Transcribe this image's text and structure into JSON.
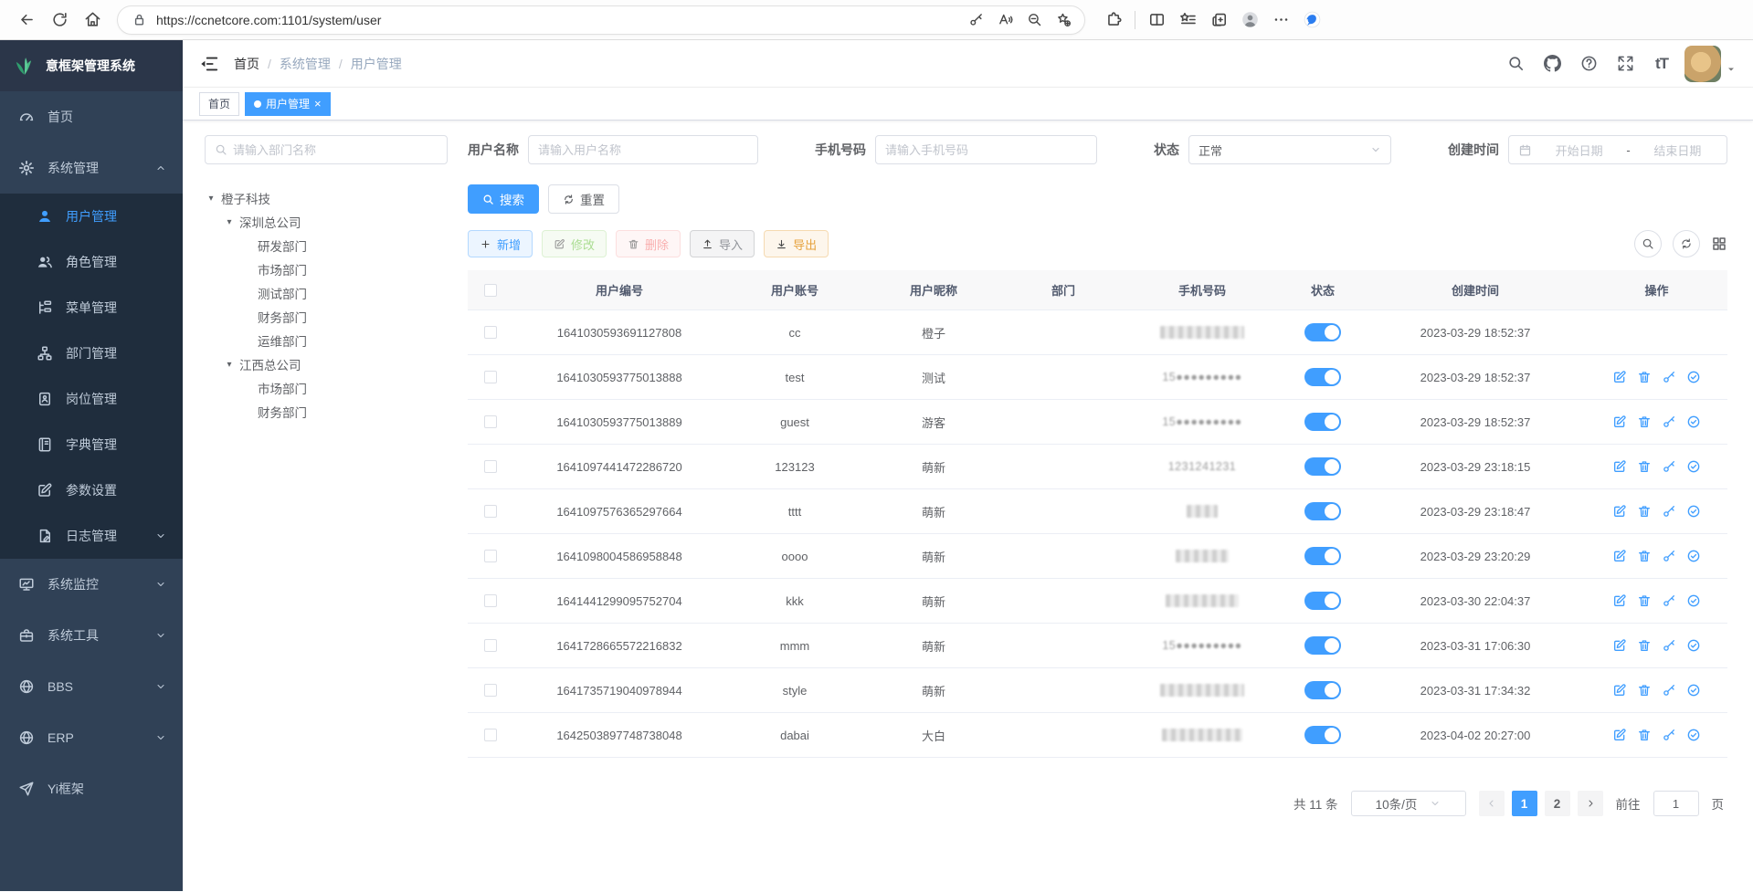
{
  "app": {
    "title": "意框架管理系统"
  },
  "colors": {
    "primary": "#409eff",
    "sidebar_bg": "#304156",
    "submenu_bg": "#1f2d3d",
    "logo_green": "#43b37c"
  },
  "browser": {
    "url": "https://ccnetcore.com:1101/system/user",
    "nav_icons": [
      {
        "name": "back"
      },
      {
        "name": "reload"
      },
      {
        "name": "home"
      }
    ],
    "address_icons_left": [
      {
        "name": "lock"
      }
    ],
    "address_icons_right": [
      {
        "name": "key"
      },
      {
        "name": "read-aloud"
      },
      {
        "name": "zoom-out"
      },
      {
        "name": "star-plus"
      }
    ],
    "toolbar_icons": [
      {
        "name": "extensions"
      },
      {
        "name": "divider"
      },
      {
        "name": "split-screen"
      },
      {
        "name": "favorites-bar"
      },
      {
        "name": "collections"
      },
      {
        "name": "profile"
      },
      {
        "name": "more"
      },
      {
        "name": "copilot"
      }
    ]
  },
  "sidebar": {
    "items": [
      {
        "label": "首页",
        "icon": "dashboard"
      },
      {
        "label": "系统管理",
        "icon": "gear",
        "expanded": true,
        "chevron": "up",
        "children": [
          {
            "label": "用户管理",
            "icon": "user",
            "active": true
          },
          {
            "label": "角色管理",
            "icon": "users"
          },
          {
            "label": "菜单管理",
            "icon": "menu-tree"
          },
          {
            "label": "部门管理",
            "icon": "org-tree"
          },
          {
            "label": "岗位管理",
            "icon": "post"
          },
          {
            "label": "字典管理",
            "icon": "dict"
          },
          {
            "label": "参数设置",
            "icon": "edit"
          },
          {
            "label": "日志管理",
            "icon": "log",
            "chevron": "down"
          }
        ]
      },
      {
        "label": "系统监控",
        "icon": "monitor",
        "chevron": "down"
      },
      {
        "label": "系统工具",
        "icon": "toolbox",
        "chevron": "down"
      },
      {
        "label": "BBS",
        "icon": "globe",
        "chevron": "down"
      },
      {
        "label": "ERP",
        "icon": "globe",
        "chevron": "down"
      },
      {
        "label": "Yi框架",
        "icon": "paper-plane"
      }
    ]
  },
  "navbar": {
    "breadcrumb": [
      {
        "label": "首页"
      },
      {
        "label": "系统管理"
      },
      {
        "label": "用户管理"
      }
    ],
    "separator": "/",
    "right_icons": [
      {
        "name": "search"
      },
      {
        "name": "github"
      },
      {
        "name": "question"
      },
      {
        "name": "fullscreen"
      },
      {
        "name": "font-size"
      }
    ]
  },
  "tags_view": [
    {
      "label": "首页",
      "active": false,
      "closable": false
    },
    {
      "label": "用户管理",
      "active": true,
      "closable": true
    }
  ],
  "dept_panel": {
    "search_placeholder": "请输入部门名称",
    "tree": [
      {
        "label": "橙子科技",
        "level": 0,
        "expandable": true
      },
      {
        "label": "深圳总公司",
        "level": 1,
        "expandable": true
      },
      {
        "label": "研发部门",
        "level": 2,
        "expandable": false
      },
      {
        "label": "市场部门",
        "level": 2,
        "expandable": false
      },
      {
        "label": "测试部门",
        "level": 2,
        "expandable": false
      },
      {
        "label": "财务部门",
        "level": 2,
        "expandable": false
      },
      {
        "label": "运维部门",
        "level": 2,
        "expandable": false
      },
      {
        "label": "江西总公司",
        "level": 1,
        "expandable": true
      },
      {
        "label": "市场部门",
        "level": 2,
        "expandable": false
      },
      {
        "label": "财务部门",
        "level": 2,
        "expandable": false
      }
    ]
  },
  "filters": {
    "username": {
      "label": "用户名称",
      "placeholder": "请输入用户名称"
    },
    "phone": {
      "label": "手机号码",
      "placeholder": "请输入手机号码"
    },
    "status": {
      "label": "状态",
      "value": "正常"
    },
    "create_time": {
      "label": "创建时间",
      "start": "开始日期",
      "separator": "-",
      "end": "结束日期"
    },
    "search": "搜索",
    "reset": "重置"
  },
  "toolbar": {
    "buttons": [
      {
        "label": "新增",
        "icon": "plus",
        "type": "primary",
        "disabled": false
      },
      {
        "label": "修改",
        "icon": "edit",
        "type": "success",
        "disabled": true
      },
      {
        "label": "删除",
        "icon": "trash",
        "type": "danger",
        "disabled": true
      },
      {
        "label": "导入",
        "icon": "upload",
        "type": "info",
        "disabled": false
      },
      {
        "label": "导出",
        "icon": "download",
        "type": "warning",
        "disabled": false
      }
    ],
    "right_icons": [
      {
        "name": "search",
        "circle": true
      },
      {
        "name": "refresh",
        "circle": true
      },
      {
        "name": "grid",
        "circle": false
      }
    ]
  },
  "table": {
    "columns": [
      "用户编号",
      "用户账号",
      "用户昵称",
      "部门",
      "手机号码",
      "状态",
      "创建时间",
      "操作"
    ],
    "row_actions": [
      {
        "name": "edit"
      },
      {
        "name": "delete"
      },
      {
        "name": "key"
      },
      {
        "name": "check-circle"
      }
    ],
    "rows": [
      {
        "id": "1641030593691127808",
        "account": "cc",
        "nickname": "橙子",
        "dept": "",
        "phone": "",
        "phone_blur_width": 92,
        "status_on": true,
        "created": "2023-03-29 18:52:37",
        "show_actions": false
      },
      {
        "id": "1641030593775013888",
        "account": "test",
        "nickname": "测试",
        "dept": "",
        "phone": "15",
        "phone_blur_width": 102,
        "status_on": true,
        "created": "2023-03-29 18:52:37",
        "show_actions": true
      },
      {
        "id": "1641030593775013889",
        "account": "guest",
        "nickname": "游客",
        "dept": "",
        "phone": "15",
        "phone_blur_width": 96,
        "status_on": true,
        "created": "2023-03-29 18:52:37",
        "show_actions": true
      },
      {
        "id": "1641097441472286720",
        "account": "123123",
        "nickname": "萌新",
        "dept": "",
        "phone": "1231241231",
        "phone_blur_width": 96,
        "status_on": true,
        "created": "2023-03-29 23:18:15",
        "show_actions": true
      },
      {
        "id": "1641097576365297664",
        "account": "tttt",
        "nickname": "萌新",
        "dept": "",
        "phone": "",
        "phone_blur_width": 34,
        "status_on": true,
        "created": "2023-03-29 23:18:47",
        "show_actions": true
      },
      {
        "id": "1641098004586958848",
        "account": "oooo",
        "nickname": "萌新",
        "dept": "",
        "phone": "",
        "phone_blur_width": 58,
        "status_on": true,
        "created": "2023-03-29 23:20:29",
        "show_actions": true
      },
      {
        "id": "1641441299095752704",
        "account": "kkk",
        "nickname": "萌新",
        "dept": "",
        "phone": "",
        "phone_blur_width": 80,
        "status_on": true,
        "created": "2023-03-30 22:04:37",
        "show_actions": true
      },
      {
        "id": "1641728665572216832",
        "account": "mmm",
        "nickname": "萌新",
        "dept": "",
        "phone": "15",
        "phone_blur_width": 96,
        "status_on": true,
        "created": "2023-03-31 17:06:30",
        "show_actions": true
      },
      {
        "id": "1641735719040978944",
        "account": "style",
        "nickname": "萌新",
        "dept": "",
        "phone": "",
        "phone_blur_width": 92,
        "status_on": true,
        "created": "2023-03-31 17:34:32",
        "show_actions": true
      },
      {
        "id": "1642503897748738048",
        "account": "dabai",
        "nickname": "大白",
        "dept": "",
        "phone": "",
        "phone_blur_width": 88,
        "status_on": true,
        "created": "2023-04-02 20:27:00",
        "show_actions": true
      }
    ]
  },
  "pagination": {
    "total": "共 11 条",
    "page_size": "10条/页",
    "pages": [
      "1",
      "2"
    ],
    "active_page": "1",
    "goto_label": "前往",
    "goto_value": "1",
    "unit": "页"
  }
}
